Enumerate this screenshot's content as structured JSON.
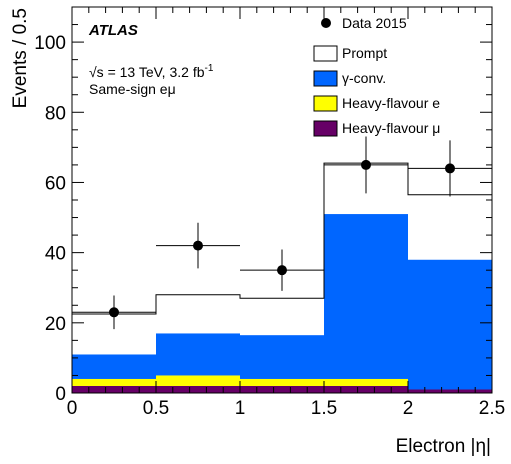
{
  "chart_data": {
    "type": "bar",
    "stacked": true,
    "xlabel": "Electron |η|",
    "ylabel": "Events / 0.5",
    "xlim": [
      0,
      2.5
    ],
    "ylim": [
      0,
      110
    ],
    "x_ticks": [
      "0",
      "0.5",
      "1",
      "1.5",
      "2",
      "2.5"
    ],
    "y_ticks": [
      "0",
      "20",
      "40",
      "60",
      "80",
      "100"
    ],
    "bin_edges": [
      0,
      0.5,
      1.0,
      1.5,
      2.0,
      2.5
    ],
    "series": [
      {
        "name": "Heavy-flavour μ",
        "color": "#660066",
        "values": [
          2,
          2,
          2,
          2,
          1
        ]
      },
      {
        "name": "Heavy-flavour e",
        "color": "#ffff00",
        "values": [
          2,
          3,
          2,
          2,
          0
        ]
      },
      {
        "name": "γ-conv.",
        "color": "#0066ff",
        "values": [
          7,
          12,
          12.5,
          47,
          37
        ]
      },
      {
        "name": "Prompt",
        "color": "#ffffff",
        "values": [
          11.5,
          11,
          10.5,
          14.5,
          18.5
        ]
      }
    ],
    "data": {
      "name": "Data 2015",
      "x": [
        0.25,
        0.75,
        1.25,
        1.75,
        2.25
      ],
      "y": [
        23,
        42,
        35,
        65,
        64
      ],
      "yerr": [
        4.8,
        6.5,
        5.9,
        8.1,
        8.0
      ]
    },
    "annotations": {
      "experiment": "ATLAS",
      "energy": "√s = 13 TeV, 3.2 fb",
      "energy_exp": "-1",
      "selection": "Same-sign eμ"
    },
    "legend_position": "top-right"
  }
}
